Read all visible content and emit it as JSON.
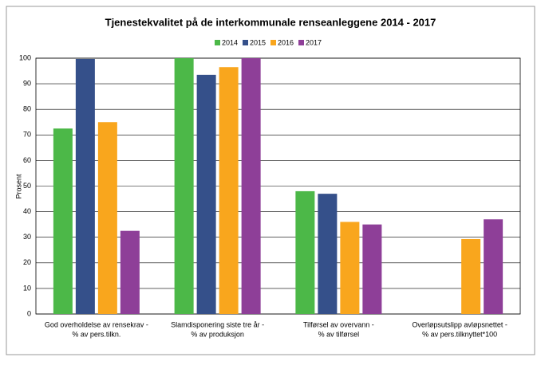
{
  "chart_data": {
    "type": "bar",
    "title": "Tjenestekvalitet på de interkommunale renseanleggene 2014 - 2017",
    "y_label": "Prosent",
    "categories": [
      [
        "God overholdelse av rensekrav -",
        "% av pers.tilkn."
      ],
      [
        "Slamdisponering siste tre år  -",
        "% av produksjon"
      ],
      [
        "Tilførsel av overvann -",
        "% av tilførsel"
      ],
      [
        "Overløpsutslipp avløpsnettet -",
        "% av pers.tilknyttet*100"
      ]
    ],
    "series": [
      {
        "name": "2014",
        "color": "#4cb848",
        "values": [
          72.5,
          100,
          48,
          null
        ]
      },
      {
        "name": "2015",
        "color": "#35508a",
        "values": [
          99.7,
          93.5,
          47,
          null
        ]
      },
      {
        "name": "2016",
        "color": "#f9a61d",
        "values": [
          75,
          96.5,
          36,
          29.3
        ]
      },
      {
        "name": "2017",
        "color": "#8e3f98",
        "values": [
          32.5,
          100,
          35,
          37
        ]
      }
    ],
    "ylim": [
      0,
      100
    ],
    "yticks": [
      0,
      10,
      20,
      30,
      40,
      50,
      60,
      70,
      80,
      90,
      100
    ],
    "grid": true,
    "legend": "top"
  }
}
